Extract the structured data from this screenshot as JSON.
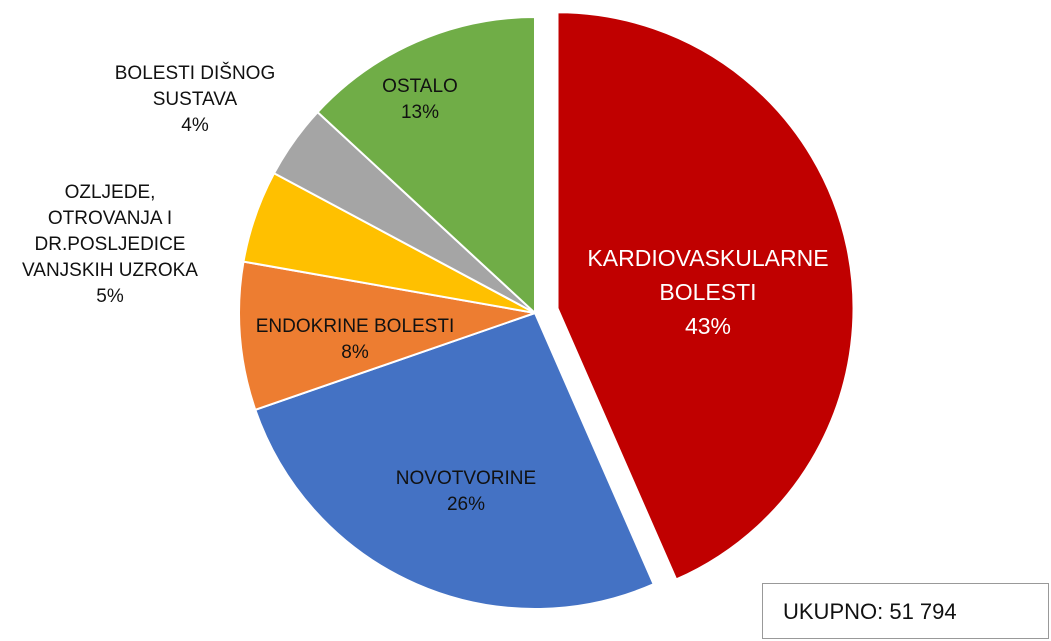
{
  "chart_data": {
    "type": "pie",
    "categories": [
      "KARDIOVASKULARNE\nBOLESTI",
      "NOVOTVORINE",
      "ENDOKRINE BOLESTI",
      "OZLJEDE,\nOTROVANJA I\nDR.POSLJEDICE\nVANJSKIH UZROKA",
      "BOLESTI DIŠNOG\nSUSTAVA",
      "OSTALO"
    ],
    "values": [
      43,
      26,
      8,
      5,
      4,
      13
    ],
    "value_labels": [
      "43%",
      "26%",
      "8%",
      "5%",
      "4%",
      "13%"
    ],
    "colors": [
      "#c00000",
      "#4472c4",
      "#ed7d31",
      "#ffc000",
      "#a5a5a5",
      "#70ad47"
    ],
    "annotation": "UKUPNO: 51 794"
  }
}
